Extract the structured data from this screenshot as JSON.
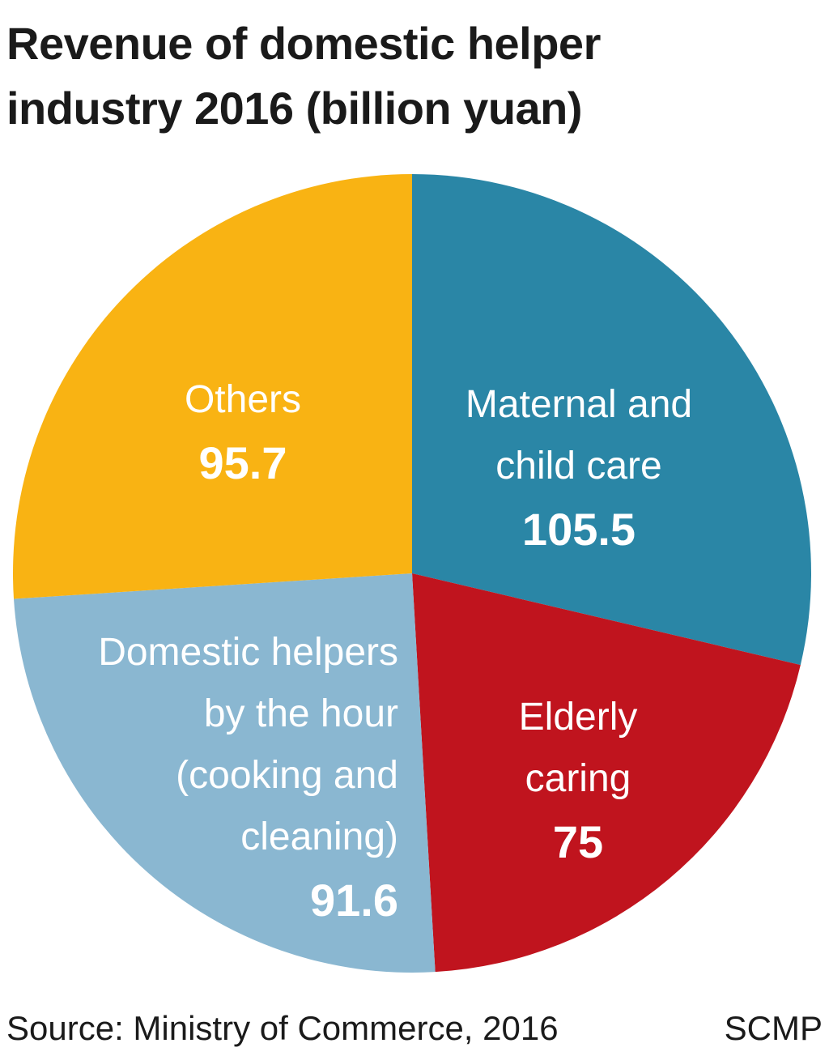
{
  "title_lines": [
    "Revenue of domestic helper",
    "industry 2016 (billion yuan)"
  ],
  "chart_data": {
    "type": "pie",
    "title": "Revenue of domestic helper industry 2016 (billion yuan)",
    "unit": "billion yuan",
    "slices": [
      {
        "label_lines": [
          "Maternal and",
          "child care"
        ],
        "label": "Maternal and child care",
        "value": 105.5,
        "value_text": "105.5",
        "color": "#2a86a6"
      },
      {
        "label_lines": [
          "Elderly",
          "caring"
        ],
        "label": "Elderly caring",
        "value": 75,
        "value_text": "75",
        "color": "#c0141e"
      },
      {
        "label_lines": [
          "Domestic helpers",
          "by the hour",
          "(cooking and",
          "cleaning)"
        ],
        "label": "Domestic helpers by the hour (cooking and cleaning)",
        "value": 91.6,
        "value_text": "91.6",
        "color": "#8ab7d1"
      },
      {
        "label_lines": [
          "Others"
        ],
        "label": "Others",
        "value": 95.7,
        "value_text": "95.7",
        "color": "#f9b313"
      }
    ]
  },
  "footer": {
    "source": "Source: Ministry of Commerce, 2016",
    "credit": "SCMP"
  }
}
